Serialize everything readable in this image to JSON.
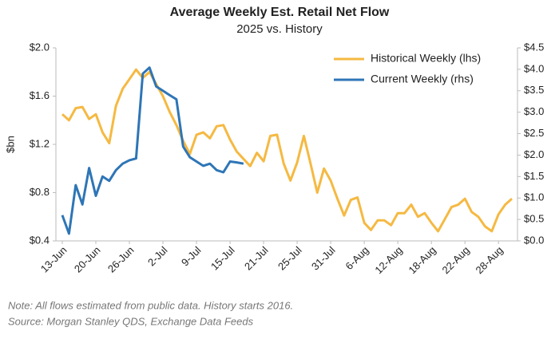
{
  "chart_data": {
    "type": "line",
    "title": "Average Weekly Est. Retail Net Flow",
    "subtitle": "2025 vs. History",
    "ylabel": "$bn",
    "notes": [
      "Note:  All flows estimated from public data. History starts 2016.",
      "Source: Morgan Stanley QDS, Exchange Data Feeds"
    ],
    "categories": [
      "13-Jun",
      null,
      null,
      null,
      null,
      "20-Jun",
      null,
      null,
      null,
      null,
      "26-Jun",
      null,
      null,
      null,
      null,
      "2-Jul",
      null,
      null,
      null,
      null,
      "9-Jul",
      null,
      null,
      null,
      null,
      "15-Jul",
      null,
      null,
      null,
      null,
      "21-Jul",
      null,
      null,
      null,
      null,
      "25-Jul",
      null,
      null,
      null,
      null,
      "31-Jul",
      null,
      null,
      null,
      null,
      "6-Aug",
      null,
      null,
      null,
      null,
      "12-Aug",
      null,
      null,
      null,
      null,
      "18-Aug",
      null,
      null,
      null,
      null,
      "22-Aug",
      null,
      null,
      null,
      null,
      "28-Aug",
      null,
      null
    ],
    "series": [
      {
        "name": "Historical Weekly (lhs)",
        "color": "#f5b942",
        "axis": "y",
        "values": [
          1.45,
          1.4,
          1.5,
          1.51,
          1.41,
          1.45,
          1.3,
          1.21,
          1.52,
          1.66,
          1.74,
          1.82,
          1.75,
          1.8,
          1.7,
          1.6,
          1.47,
          1.36,
          1.23,
          1.12,
          1.28,
          1.3,
          1.25,
          1.35,
          1.36,
          1.24,
          1.14,
          1.08,
          1.02,
          1.13,
          1.06,
          1.27,
          1.28,
          1.04,
          0.9,
          1.05,
          1.27,
          1.04,
          0.8,
          1.0,
          0.9,
          0.75,
          0.61,
          0.74,
          0.76,
          0.55,
          0.49,
          0.57,
          0.57,
          0.53,
          0.63,
          0.63,
          0.7,
          0.6,
          0.63,
          0.55,
          0.48,
          0.58,
          0.68,
          0.7,
          0.75,
          0.64,
          0.6,
          0.52,
          0.48,
          0.62,
          0.7,
          0.75
        ]
      },
      {
        "name": "Current Weekly (rhs)",
        "color": "#2e75b6",
        "axis": "y2",
        "values": [
          0.6,
          0.17,
          1.3,
          0.85,
          1.7,
          1.05,
          1.5,
          1.4,
          1.65,
          1.8,
          1.88,
          1.92,
          3.9,
          4.04,
          3.6,
          3.5,
          3.4,
          3.3,
          2.2,
          1.95,
          1.85,
          1.75,
          1.8,
          1.65,
          1.6,
          1.85,
          1.83,
          1.8,
          null,
          null,
          null,
          null,
          null,
          null,
          null,
          null,
          null,
          null,
          null,
          null,
          null,
          null,
          null,
          null,
          null,
          null,
          null,
          null,
          null,
          null,
          null,
          null,
          null,
          null,
          null,
          null,
          null,
          null,
          null,
          null,
          null,
          null,
          null,
          null,
          null,
          null,
          null,
          null
        ]
      }
    ],
    "ylim": [
      0.4,
      2.0
    ],
    "yticks": [
      {
        "value": 0.4,
        "label": "$0.4"
      },
      {
        "value": 0.8,
        "label": "$0.8"
      },
      {
        "value": 1.2,
        "label": "$1.2"
      },
      {
        "value": 1.6,
        "label": "$1.6"
      },
      {
        "value": 2.0,
        "label": "$2.0"
      }
    ],
    "y2lim": [
      0,
      4.5
    ],
    "y2ticks": [
      {
        "value": 0,
        "label": "$0.0"
      },
      {
        "value": 0.5,
        "label": "$0.5"
      },
      {
        "value": 1.0,
        "label": "$1.0"
      },
      {
        "value": 1.5,
        "label": "$1.5"
      },
      {
        "value": 2.0,
        "label": "$2.0"
      },
      {
        "value": 2.5,
        "label": "$2.5"
      },
      {
        "value": 3.0,
        "label": "$3.0"
      },
      {
        "value": 3.5,
        "label": "$3.5"
      },
      {
        "value": 4.0,
        "label": "$4.0"
      },
      {
        "value": 4.5,
        "label": "$4.5"
      }
    ],
    "grid": false,
    "legend": "top-right"
  }
}
